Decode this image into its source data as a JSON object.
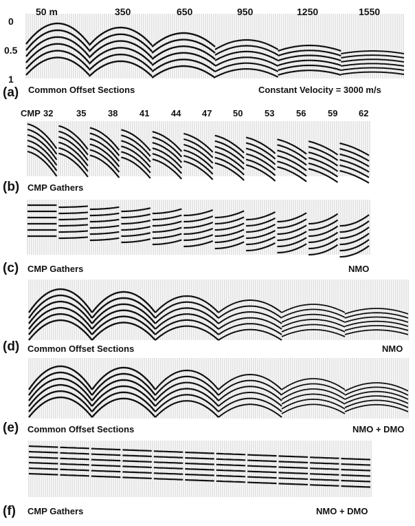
{
  "panels": {
    "a": {
      "letter": "(a)",
      "caption": "Common Offset Sections",
      "note": "Constant Velocity = 3000 m/s",
      "offsets": [
        "50 m",
        "350",
        "650",
        "950",
        "1250",
        "1550"
      ],
      "time_axis": [
        "0",
        "0.5",
        "1"
      ]
    },
    "b": {
      "letter": "(b)",
      "caption": "CMP Gathers",
      "cmp_prefix": "CMP",
      "cmps": [
        "32",
        "35",
        "38",
        "41",
        "44",
        "47",
        "50",
        "53",
        "56",
        "59",
        "62"
      ]
    },
    "c": {
      "letter": "(c)",
      "caption": "CMP Gathers",
      "note": "NMO"
    },
    "d": {
      "letter": "(d)",
      "caption": "Common Offset Sections",
      "note": "NMO"
    },
    "e": {
      "letter": "(e)",
      "caption": "Common Offset Sections",
      "note": "NMO + DMO"
    },
    "f": {
      "letter": "(f)",
      "caption": "CMP Gathers",
      "note": "NMO + DMO"
    }
  },
  "colors": {
    "ink": "#111111",
    "trace": "#a8a8a8",
    "background": "#ffffff"
  }
}
